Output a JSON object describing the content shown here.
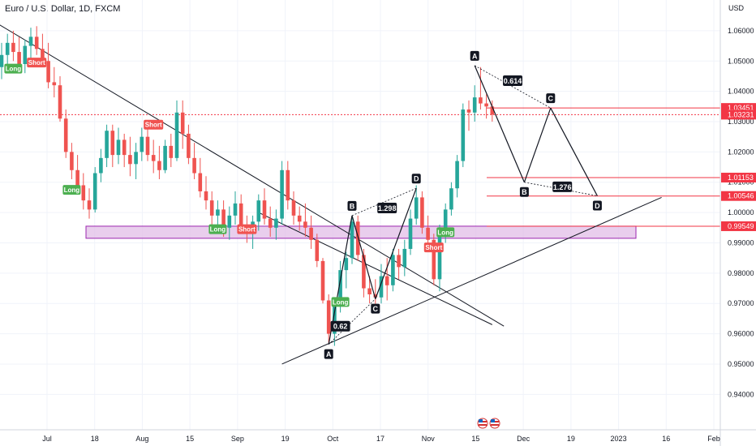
{
  "symbol_title": "Euro / U.S. Dollar, 1D, FXCM",
  "currency_label": "USD",
  "colors": {
    "up": "#26a69a",
    "down": "#ef5350",
    "long_tag": "#4caf50",
    "short_tag": "#f05350",
    "zone_fill": "#e1bee7",
    "zone_stroke": "#9c27b0",
    "level_line": "#f23645",
    "pattern_label": "#131722"
  },
  "chart_data": {
    "type": "candlestick",
    "y_axis": {
      "min": 0.935,
      "max": 1.068,
      "ticks": [
        "1.06000",
        "1.05000",
        "1.04000",
        "1.03000",
        "1.02000",
        "1.01000",
        "1.00000",
        "0.99000",
        "0.98000",
        "0.97000",
        "0.96000",
        "0.95000",
        "0.94000"
      ]
    },
    "x_axis": {
      "labels": [
        "Jul",
        "18",
        "Aug",
        "15",
        "Sep",
        "19",
        "Oct",
        "17",
        "Nov",
        "15",
        "Dec",
        "19",
        "2023",
        "16",
        "Feb"
      ]
    },
    "candles_start": "Jun",
    "candles": [
      [
        1.048,
        1.056,
        1.044,
        1.052
      ],
      [
        1.052,
        1.059,
        1.049,
        1.056
      ],
      [
        1.056,
        1.06,
        1.05,
        1.053
      ],
      [
        1.053,
        1.058,
        1.047,
        1.049
      ],
      [
        1.049,
        1.057,
        1.046,
        1.055
      ],
      [
        1.055,
        1.061,
        1.051,
        1.058
      ],
      [
        1.058,
        1.0615,
        1.052,
        1.054
      ],
      [
        1.054,
        1.059,
        1.048,
        1.05
      ],
      [
        1.05,
        1.056,
        1.041,
        1.043
      ],
      [
        1.043,
        1.048,
        1.038,
        1.042
      ],
      [
        1.042,
        1.045,
        1.03,
        1.031
      ],
      [
        1.031,
        1.034,
        1.018,
        1.02
      ],
      [
        1.02,
        1.023,
        1.011,
        1.014
      ],
      [
        1.014,
        1.019,
        1.007,
        1.009
      ],
      [
        1.009,
        1.013,
        1.001,
        1.004
      ],
      [
        1.004,
        1.008,
        0.998,
        1.001
      ],
      [
        1.001,
        1.015,
        1.0,
        1.013
      ],
      [
        1.013,
        1.021,
        1.01,
        1.018
      ],
      [
        1.018,
        1.029,
        1.015,
        1.027
      ],
      [
        1.027,
        1.029,
        1.015,
        1.019
      ],
      [
        1.019,
        1.028,
        1.016,
        1.024
      ],
      [
        1.024,
        1.026,
        1.015,
        1.019
      ],
      [
        1.019,
        1.025,
        1.012,
        1.016
      ],
      [
        1.016,
        1.023,
        1.011,
        1.02
      ],
      [
        1.02,
        1.028,
        1.017,
        1.025
      ],
      [
        1.025,
        1.029,
        1.017,
        1.019
      ],
      [
        1.019,
        1.024,
        1.013,
        1.017
      ],
      [
        1.017,
        1.022,
        1.011,
        1.014
      ],
      [
        1.014,
        1.024,
        1.013,
        1.022
      ],
      [
        1.022,
        1.026,
        1.015,
        1.018
      ],
      [
        1.018,
        1.037,
        1.017,
        1.033
      ],
      [
        1.033,
        1.037,
        1.021,
        1.026
      ],
      [
        1.026,
        1.029,
        1.016,
        1.018
      ],
      [
        1.018,
        1.023,
        1.011,
        1.013
      ],
      [
        1.013,
        1.018,
        1.005,
        1.007
      ],
      [
        1.007,
        1.012,
        1.001,
        1.004
      ],
      [
        1.004,
        1.007,
        0.996,
        0.999
      ],
      [
        0.999,
        1.004,
        0.994,
        1.001
      ],
      [
        1.001,
        1.004,
        0.992,
        0.995
      ],
      [
        0.995,
        1.002,
        0.991,
        0.999
      ],
      [
        0.999,
        1.007,
        0.996,
        1.003
      ],
      [
        1.003,
        1.006,
        0.994,
        0.996
      ],
      [
        0.996,
        0.999,
        0.99,
        0.994
      ],
      [
        0.994,
        0.999,
        0.988,
        0.997
      ],
      [
        0.997,
        1.006,
        0.994,
        1.004
      ],
      [
        1.004,
        1.008,
        0.996,
        0.998
      ],
      [
        0.998,
        1.002,
        0.992,
        0.995
      ],
      [
        0.995,
        1.001,
        0.991,
        0.998
      ],
      [
        0.998,
        1.017,
        0.996,
        1.014
      ],
      [
        1.014,
        1.017,
        1.001,
        1.004
      ],
      [
        1.004,
        1.007,
        0.996,
        0.999
      ],
      [
        0.999,
        1.002,
        0.994,
        0.997
      ],
      [
        0.997,
        1.003,
        0.992,
        0.995
      ],
      [
        0.995,
        0.999,
        0.988,
        0.991
      ],
      [
        0.991,
        0.993,
        0.982,
        0.984
      ],
      [
        0.984,
        0.985,
        0.97,
        0.971
      ],
      [
        0.971,
        0.973,
        0.957,
        0.96
      ],
      [
        0.96,
        0.972,
        0.956,
        0.969
      ],
      [
        0.969,
        0.984,
        0.967,
        0.981
      ],
      [
        0.981,
        0.987,
        0.975,
        0.985
      ],
      [
        0.985,
        0.999,
        0.983,
        0.997
      ],
      [
        0.997,
        0.999,
        0.984,
        0.986
      ],
      [
        0.986,
        0.988,
        0.972,
        0.975
      ],
      [
        0.975,
        0.979,
        0.97,
        0.973
      ],
      [
        0.973,
        0.978,
        0.969,
        0.972
      ],
      [
        0.972,
        0.983,
        0.97,
        0.979
      ],
      [
        0.979,
        0.985,
        0.971,
        0.976
      ],
      [
        0.976,
        0.988,
        0.974,
        0.986
      ],
      [
        0.986,
        0.988,
        0.978,
        0.982
      ],
      [
        0.982,
        0.991,
        0.979,
        0.988
      ],
      [
        0.988,
        1.001,
        0.986,
        0.998
      ],
      [
        0.998,
        1.009,
        0.996,
        1.005
      ],
      [
        1.005,
        1.007,
        0.993,
        0.995
      ],
      [
        0.995,
        0.999,
        0.989,
        0.991
      ],
      [
        0.991,
        0.993,
        0.976,
        0.978
      ],
      [
        0.978,
        0.996,
        0.974,
        0.994
      ],
      [
        0.994,
        1.003,
        0.99,
        1.001
      ],
      [
        1.001,
        1.01,
        0.999,
        1.008
      ],
      [
        1.008,
        1.019,
        1.005,
        1.017
      ],
      [
        1.017,
        1.036,
        1.015,
        1.034
      ],
      [
        1.034,
        1.037,
        1.027,
        1.033
      ],
      [
        1.033,
        1.042,
        1.03,
        1.038
      ],
      [
        1.038,
        1.048,
        1.034,
        1.036
      ],
      [
        1.036,
        1.039,
        1.031,
        1.035
      ],
      [
        1.035,
        1.037,
        1.03,
        1.0323
      ]
    ],
    "levels": [
      {
        "price": 1.03451,
        "label": "1.03451"
      },
      {
        "price": 1.03231,
        "label": "1.03231"
      },
      {
        "price": 1.01153,
        "label": "1.01153"
      },
      {
        "price": 1.00546,
        "label": "1.00546"
      },
      {
        "price": 0.99549,
        "label": "0.99549"
      }
    ],
    "demand_zone": {
      "top": 0.9955,
      "bottom": 0.9915
    },
    "signals": [
      {
        "text": "Long",
        "type": "long",
        "i": 2,
        "price": 1.0475
      },
      {
        "text": "Short",
        "type": "short",
        "i": 6,
        "price": 1.0495
      },
      {
        "text": "Long",
        "type": "long",
        "i": 12,
        "price": 1.0075
      },
      {
        "text": "Short",
        "type": "short",
        "i": 26,
        "price": 1.029
      },
      {
        "text": "Long",
        "type": "long",
        "i": 37,
        "price": 0.9945
      },
      {
        "text": "Short",
        "type": "short",
        "i": 42,
        "price": 0.9945
      },
      {
        "text": "Long",
        "type": "long",
        "i": 58,
        "price": 0.9705
      },
      {
        "text": "Short",
        "type": "short",
        "i": 74,
        "price": 0.9885
      },
      {
        "text": "Long",
        "type": "long",
        "i": 76,
        "price": 0.9935
      }
    ],
    "pattern_points": [
      {
        "label": "A",
        "i": 56,
        "price": 0.9565,
        "pos": "below"
      },
      {
        "label": "B",
        "i": 60,
        "price": 0.999,
        "pos": "above"
      },
      {
        "label": "C",
        "i": 64,
        "price": 0.9715,
        "pos": "below"
      },
      {
        "label": "D",
        "i": 71,
        "price": 1.008,
        "pos": "above"
      },
      {
        "label": "A",
        "i": 81,
        "price": 1.0485,
        "pos": "above"
      },
      {
        "label": "C",
        "i": 94,
        "price": 1.0345,
        "pos": "below-right"
      },
      {
        "label": "B",
        "i": 89.5,
        "price": 1.01,
        "pos": "below"
      },
      {
        "label": "D",
        "i": 102,
        "price": 1.0055,
        "pos": "below"
      }
    ],
    "ratios": [
      {
        "text": "0.62",
        "i": 58,
        "price": 0.9625
      },
      {
        "text": "1.298",
        "i": 66,
        "price": 1.0015
      },
      {
        "text": "0.614",
        "i": 87.5,
        "price": 1.0435
      },
      {
        "text": "1.276",
        "i": 96,
        "price": 1.0085
      }
    ],
    "trendlines": [
      {
        "from": [
          -3,
          1.065
        ],
        "to": [
          86,
          0.9625
        ]
      },
      {
        "from": [
          48,
          0.95
        ],
        "to": [
          113,
          1.005
        ]
      }
    ]
  }
}
